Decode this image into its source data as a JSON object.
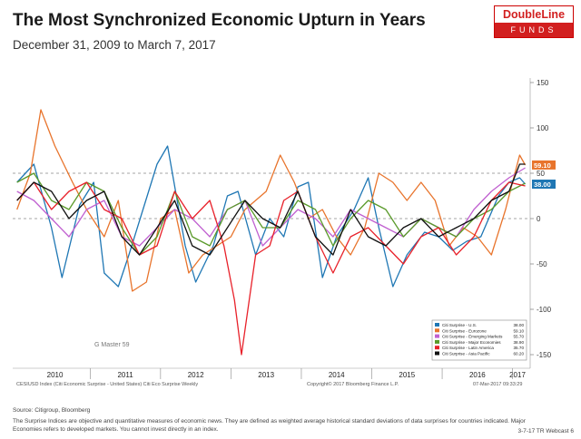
{
  "logo": {
    "brand": "DoubleLine",
    "sub": "FUNDS"
  },
  "footer": {
    "source": "Source: Citigroup, Bloomberg",
    "note1": "The Surprise Indices are objective and quantitative measures of economic news. They are defined as weighted average historical standard deviations of data surprises for countries indicated. Major",
    "note2": "Economies refers to developed markets. You cannot invest directly in an index.",
    "webcast": "3-7-17 TR Webcast 6"
  },
  "chart_data": {
    "type": "line",
    "title": "The Most Synchronized Economic Upturn in Years",
    "subtitle": "December 31, 2009 to March 7, 2017",
    "ylim": [
      -165,
      155
    ],
    "yticks": [
      150,
      100,
      50,
      0,
      -50,
      -100,
      -150
    ],
    "xlim": [
      2009.9,
      2017.25
    ],
    "x_tick_labels": [
      "2010",
      "2011",
      "2012",
      "2013",
      "2014",
      "2015",
      "2016",
      "2017"
    ],
    "reference_lines": [
      0,
      50
    ],
    "watermark": "G Master 59",
    "bloomberg_left": "CESIUSD Index (Citi Economic Surprise - United States) Citi Eco Surprise  Weekly",
    "bloomberg_center": "Copyright© 2017 Bloomberg Finance L.P.",
    "bloomberg_right": "07-Mar-2017 09:33:29",
    "last_value_tags": [
      {
        "label": "59.10",
        "value": 59.1,
        "color": "#e8742c"
      },
      {
        "label": "38.00",
        "value": 38.0,
        "color": "#1f77b4"
      }
    ],
    "legend_position": "bottom-right",
    "series": [
      {
        "name": "Citi Surprise - U.S.",
        "last": "38.00",
        "color": "#1f77b4",
        "x": [
          2009.96,
          2010.2,
          2010.45,
          2010.6,
          2010.85,
          2011.05,
          2011.2,
          2011.4,
          2011.55,
          2011.75,
          2011.95,
          2012.1,
          2012.35,
          2012.5,
          2012.75,
          2012.95,
          2013.1,
          2013.35,
          2013.55,
          2013.75,
          2013.95,
          2014.1,
          2014.3,
          2014.5,
          2014.75,
          2014.95,
          2015.1,
          2015.3,
          2015.5,
          2015.75,
          2015.95,
          2016.15,
          2016.35,
          2016.55,
          2016.8,
          2016.95,
          2017.1,
          2017.18
        ],
        "y": [
          40,
          60,
          -10,
          -65,
          15,
          40,
          -60,
          -75,
          -40,
          10,
          60,
          80,
          -30,
          -70,
          -30,
          25,
          30,
          -40,
          0,
          -20,
          35,
          40,
          -65,
          -20,
          10,
          45,
          -10,
          -75,
          -40,
          -15,
          -20,
          -35,
          -25,
          -20,
          25,
          40,
          45,
          38
        ]
      },
      {
        "name": "Citi Surprise - Eurozone",
        "last": "59.10",
        "color": "#e8742c",
        "x": [
          2009.96,
          2010.15,
          2010.3,
          2010.5,
          2010.75,
          2010.95,
          2011.2,
          2011.4,
          2011.6,
          2011.8,
          2012.0,
          2012.2,
          2012.4,
          2012.6,
          2012.8,
          2013.0,
          2013.2,
          2013.5,
          2013.7,
          2013.9,
          2014.1,
          2014.3,
          2014.5,
          2014.7,
          2014.9,
          2015.1,
          2015.3,
          2015.5,
          2015.7,
          2015.9,
          2016.1,
          2016.3,
          2016.5,
          2016.7,
          2016.9,
          2017.0,
          2017.1,
          2017.18
        ],
        "y": [
          10,
          50,
          120,
          80,
          40,
          10,
          -20,
          20,
          -80,
          -70,
          0,
          10,
          -60,
          -40,
          -30,
          -20,
          10,
          30,
          70,
          40,
          0,
          10,
          -20,
          -40,
          -10,
          50,
          40,
          20,
          40,
          20,
          -30,
          -10,
          -20,
          -40,
          10,
          40,
          70,
          59
        ]
      },
      {
        "name": "Citi Surprise - Emerging Markets",
        "last": "55.70",
        "color": "#c060d0",
        "x": [
          2009.96,
          2010.2,
          2010.45,
          2010.7,
          2010.95,
          2011.2,
          2011.45,
          2011.7,
          2011.95,
          2012.2,
          2012.45,
          2012.7,
          2012.95,
          2013.2,
          2013.45,
          2013.7,
          2013.95,
          2014.2,
          2014.45,
          2014.7,
          2014.95,
          2015.2,
          2015.45,
          2015.7,
          2015.95,
          2016.2,
          2016.45,
          2016.7,
          2016.95,
          2017.18
        ],
        "y": [
          30,
          20,
          0,
          -20,
          10,
          20,
          -20,
          -30,
          -10,
          10,
          0,
          -20,
          10,
          20,
          -30,
          -10,
          10,
          0,
          -20,
          10,
          0,
          -10,
          -20,
          0,
          -10,
          -20,
          10,
          30,
          45,
          56
        ]
      },
      {
        "name": "Citi Surprise - Major Economies",
        "last": "38.90",
        "color": "#5a9a2a",
        "x": [
          2009.96,
          2010.2,
          2010.45,
          2010.7,
          2010.95,
          2011.2,
          2011.45,
          2011.7,
          2011.95,
          2012.2,
          2012.45,
          2012.7,
          2012.95,
          2013.2,
          2013.45,
          2013.7,
          2013.95,
          2014.2,
          2014.45,
          2014.7,
          2014.95,
          2015.2,
          2015.45,
          2015.7,
          2015.95,
          2016.2,
          2016.45,
          2016.7,
          2016.95,
          2017.18
        ],
        "y": [
          40,
          50,
          20,
          10,
          40,
          30,
          -10,
          -40,
          -20,
          30,
          -20,
          -30,
          10,
          20,
          -10,
          -10,
          20,
          10,
          -30,
          0,
          20,
          10,
          -20,
          0,
          -10,
          -20,
          0,
          10,
          30,
          39
        ]
      },
      {
        "name": "Citi Surprise - Latin America",
        "last": "35.70",
        "color": "#e8212a",
        "x": [
          2009.96,
          2010.2,
          2010.45,
          2010.7,
          2010.95,
          2011.2,
          2011.45,
          2011.7,
          2011.95,
          2012.2,
          2012.45,
          2012.7,
          2012.9,
          2013.05,
          2013.15,
          2013.35,
          2013.55,
          2013.75,
          2013.95,
          2014.2,
          2014.45,
          2014.7,
          2014.95,
          2015.2,
          2015.45,
          2015.7,
          2015.95,
          2016.2,
          2016.45,
          2016.7,
          2016.95,
          2017.18
        ],
        "y": [
          20,
          40,
          10,
          30,
          40,
          10,
          0,
          -40,
          -30,
          30,
          0,
          20,
          -30,
          -90,
          -150,
          -40,
          -30,
          20,
          30,
          -20,
          -60,
          -20,
          -10,
          -30,
          -50,
          -20,
          -10,
          -40,
          -20,
          20,
          40,
          36
        ]
      },
      {
        "name": "Citi Surprise - Asia Pacific",
        "last": "60.20",
        "color": "#111111",
        "x": [
          2009.96,
          2010.2,
          2010.45,
          2010.7,
          2010.95,
          2011.2,
          2011.45,
          2011.7,
          2011.95,
          2012.2,
          2012.45,
          2012.7,
          2012.95,
          2013.2,
          2013.45,
          2013.7,
          2013.95,
          2014.2,
          2014.45,
          2014.7,
          2014.95,
          2015.2,
          2015.45,
          2015.7,
          2015.95,
          2016.2,
          2016.45,
          2016.7,
          2016.95,
          2017.1,
          2017.18
        ],
        "y": [
          20,
          40,
          30,
          0,
          20,
          30,
          -20,
          -40,
          -10,
          20,
          -30,
          -40,
          -10,
          20,
          0,
          -10,
          30,
          -20,
          -40,
          10,
          -20,
          -30,
          -10,
          0,
          -20,
          -10,
          0,
          20,
          30,
          60,
          60
        ]
      }
    ]
  }
}
